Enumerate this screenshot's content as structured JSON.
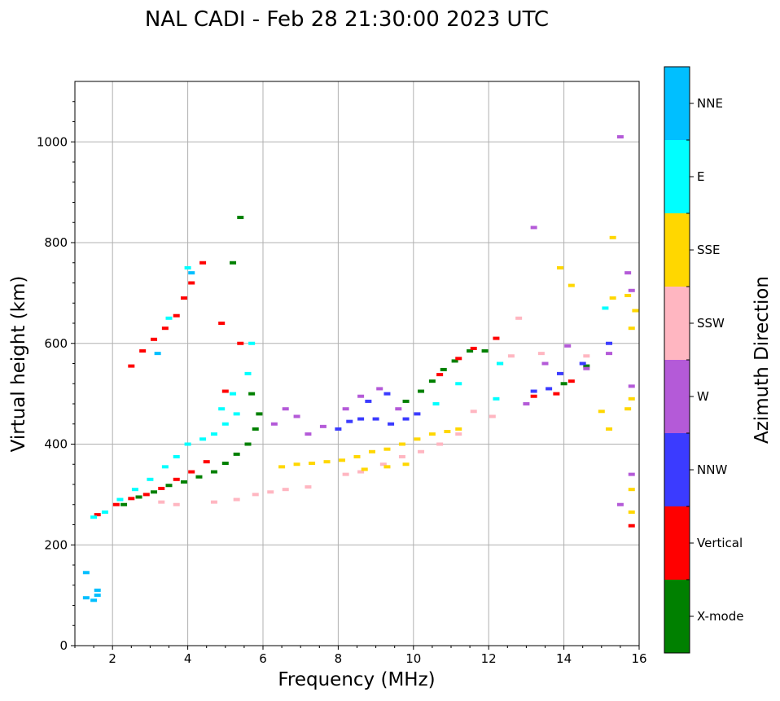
{
  "chart_data": {
    "type": "scatter",
    "title": "NAL CADI - Feb 28 21:30:00 2023 UTC",
    "xlabel": "Frequency (MHz)",
    "ylabel": "Virtual height (km)",
    "xlim": [
      1,
      16
    ],
    "ylim": [
      0,
      1120
    ],
    "x_ticks": [
      2,
      4,
      6,
      8,
      10,
      12,
      14,
      16
    ],
    "y_ticks": [
      0,
      200,
      400,
      600,
      800,
      1000
    ],
    "grid": true,
    "colorbar": {
      "label": "Azimuth Direction",
      "entries": [
        "X-mode",
        "Vertical",
        "NNW",
        "W",
        "SSW",
        "SSE",
        "E",
        "NNE"
      ],
      "colors": {
        "X-mode": "#008000",
        "Vertical": "#ff0000",
        "NNW": "#3b3bff",
        "W": "#b45ad8",
        "SSW": "#ffb6c1",
        "SSE": "#ffd700",
        "E": "#00ffff",
        "NNE": "#00bfff"
      }
    },
    "series": [
      {
        "name": "X-mode",
        "points": [
          [
            2.3,
            280
          ],
          [
            2.7,
            295
          ],
          [
            3.1,
            305
          ],
          [
            3.5,
            318
          ],
          [
            3.9,
            325
          ],
          [
            4.3,
            335
          ],
          [
            4.7,
            345
          ],
          [
            5.0,
            362
          ],
          [
            5.3,
            380
          ],
          [
            5.6,
            400
          ],
          [
            5.8,
            430
          ],
          [
            5.9,
            460
          ],
          [
            5.7,
            500
          ],
          [
            5.2,
            760
          ],
          [
            5.4,
            850
          ],
          [
            9.8,
            485
          ],
          [
            10.2,
            505
          ],
          [
            10.5,
            525
          ],
          [
            10.8,
            548
          ],
          [
            11.1,
            565
          ],
          [
            11.5,
            585
          ],
          [
            11.9,
            585
          ],
          [
            12.3,
            560
          ],
          [
            14.0,
            520
          ],
          [
            14.6,
            555
          ]
        ]
      },
      {
        "name": "Vertical",
        "points": [
          [
            1.6,
            260
          ],
          [
            2.1,
            280
          ],
          [
            2.5,
            292
          ],
          [
            2.9,
            300
          ],
          [
            3.3,
            312
          ],
          [
            3.7,
            330
          ],
          [
            4.1,
            345
          ],
          [
            4.5,
            365
          ],
          [
            2.5,
            555
          ],
          [
            2.8,
            585
          ],
          [
            3.1,
            608
          ],
          [
            3.4,
            630
          ],
          [
            3.7,
            655
          ],
          [
            3.9,
            690
          ],
          [
            4.1,
            720
          ],
          [
            4.4,
            760
          ],
          [
            4.9,
            640
          ],
          [
            5.0,
            505
          ],
          [
            5.4,
            600
          ],
          [
            10.7,
            538
          ],
          [
            11.2,
            570
          ],
          [
            11.6,
            590
          ],
          [
            12.2,
            610
          ],
          [
            13.2,
            495
          ],
          [
            13.8,
            500
          ],
          [
            14.2,
            525
          ],
          [
            15.8,
            238
          ]
        ]
      },
      {
        "name": "NNW",
        "points": [
          [
            8.0,
            430
          ],
          [
            8.3,
            445
          ],
          [
            8.6,
            450
          ],
          [
            9.0,
            450
          ],
          [
            9.4,
            440
          ],
          [
            9.8,
            450
          ],
          [
            10.1,
            460
          ],
          [
            13.2,
            505
          ],
          [
            13.6,
            510
          ],
          [
            13.9,
            540
          ],
          [
            14.5,
            560
          ],
          [
            15.2,
            600
          ],
          [
            8.8,
            485
          ],
          [
            9.3,
            500
          ]
        ]
      },
      {
        "name": "W",
        "points": [
          [
            6.3,
            440
          ],
          [
            6.6,
            470
          ],
          [
            6.9,
            455
          ],
          [
            7.2,
            420
          ],
          [
            7.6,
            435
          ],
          [
            8.2,
            470
          ],
          [
            8.6,
            495
          ],
          [
            9.1,
            510
          ],
          [
            9.6,
            470
          ],
          [
            13.0,
            480
          ],
          [
            13.5,
            560
          ],
          [
            14.1,
            595
          ],
          [
            14.6,
            550
          ],
          [
            15.2,
            580
          ],
          [
            15.8,
            515
          ],
          [
            15.7,
            740
          ],
          [
            15.8,
            705
          ],
          [
            15.5,
            1010
          ],
          [
            15.8,
            340
          ],
          [
            15.5,
            280
          ],
          [
            13.2,
            830
          ]
        ]
      },
      {
        "name": "SSW",
        "points": [
          [
            3.3,
            285
          ],
          [
            3.7,
            280
          ],
          [
            5.3,
            290
          ],
          [
            5.8,
            300
          ],
          [
            6.2,
            305
          ],
          [
            6.6,
            310
          ],
          [
            7.2,
            315
          ],
          [
            8.2,
            340
          ],
          [
            8.6,
            345
          ],
          [
            9.2,
            360
          ],
          [
            9.7,
            375
          ],
          [
            10.2,
            385
          ],
          [
            10.7,
            400
          ],
          [
            11.2,
            420
          ],
          [
            11.6,
            465
          ],
          [
            12.1,
            455
          ],
          [
            12.6,
            575
          ],
          [
            12.8,
            650
          ],
          [
            13.4,
            580
          ],
          [
            14.6,
            575
          ],
          [
            4.7,
            285
          ]
        ]
      },
      {
        "name": "SSE",
        "points": [
          [
            6.5,
            355
          ],
          [
            6.9,
            360
          ],
          [
            7.3,
            362
          ],
          [
            7.7,
            365
          ],
          [
            8.1,
            368
          ],
          [
            8.5,
            375
          ],
          [
            8.9,
            385
          ],
          [
            9.3,
            390
          ],
          [
            9.7,
            400
          ],
          [
            10.1,
            410
          ],
          [
            10.5,
            420
          ],
          [
            10.9,
            425
          ],
          [
            11.2,
            430
          ],
          [
            8.7,
            350
          ],
          [
            9.3,
            355
          ],
          [
            9.8,
            360
          ],
          [
            15.2,
            430
          ],
          [
            15.0,
            465
          ],
          [
            15.7,
            470
          ],
          [
            15.8,
            490
          ],
          [
            15.8,
            630
          ],
          [
            15.9,
            665
          ],
          [
            15.3,
            690
          ],
          [
            15.7,
            695
          ],
          [
            15.3,
            810
          ],
          [
            13.9,
            750
          ],
          [
            14.2,
            715
          ],
          [
            15.8,
            265
          ],
          [
            15.8,
            310
          ]
        ]
      },
      {
        "name": "E",
        "points": [
          [
            1.5,
            255
          ],
          [
            1.8,
            265
          ],
          [
            2.2,
            290
          ],
          [
            2.6,
            310
          ],
          [
            3.0,
            330
          ],
          [
            3.4,
            355
          ],
          [
            3.7,
            375
          ],
          [
            4.0,
            400
          ],
          [
            4.4,
            410
          ],
          [
            4.7,
            420
          ],
          [
            5.0,
            440
          ],
          [
            5.3,
            460
          ],
          [
            5.6,
            540
          ],
          [
            5.7,
            600
          ],
          [
            5.2,
            500
          ],
          [
            4.9,
            470
          ],
          [
            4.0,
            750
          ],
          [
            3.5,
            650
          ],
          [
            10.6,
            480
          ],
          [
            11.2,
            520
          ],
          [
            12.2,
            490
          ],
          [
            12.3,
            560
          ],
          [
            15.1,
            670
          ]
        ]
      },
      {
        "name": "NNE",
        "points": [
          [
            1.3,
            95
          ],
          [
            1.6,
            110
          ],
          [
            1.6,
            100
          ],
          [
            1.5,
            90
          ],
          [
            1.3,
            145
          ],
          [
            3.2,
            580
          ],
          [
            4.1,
            740
          ]
        ]
      }
    ]
  }
}
